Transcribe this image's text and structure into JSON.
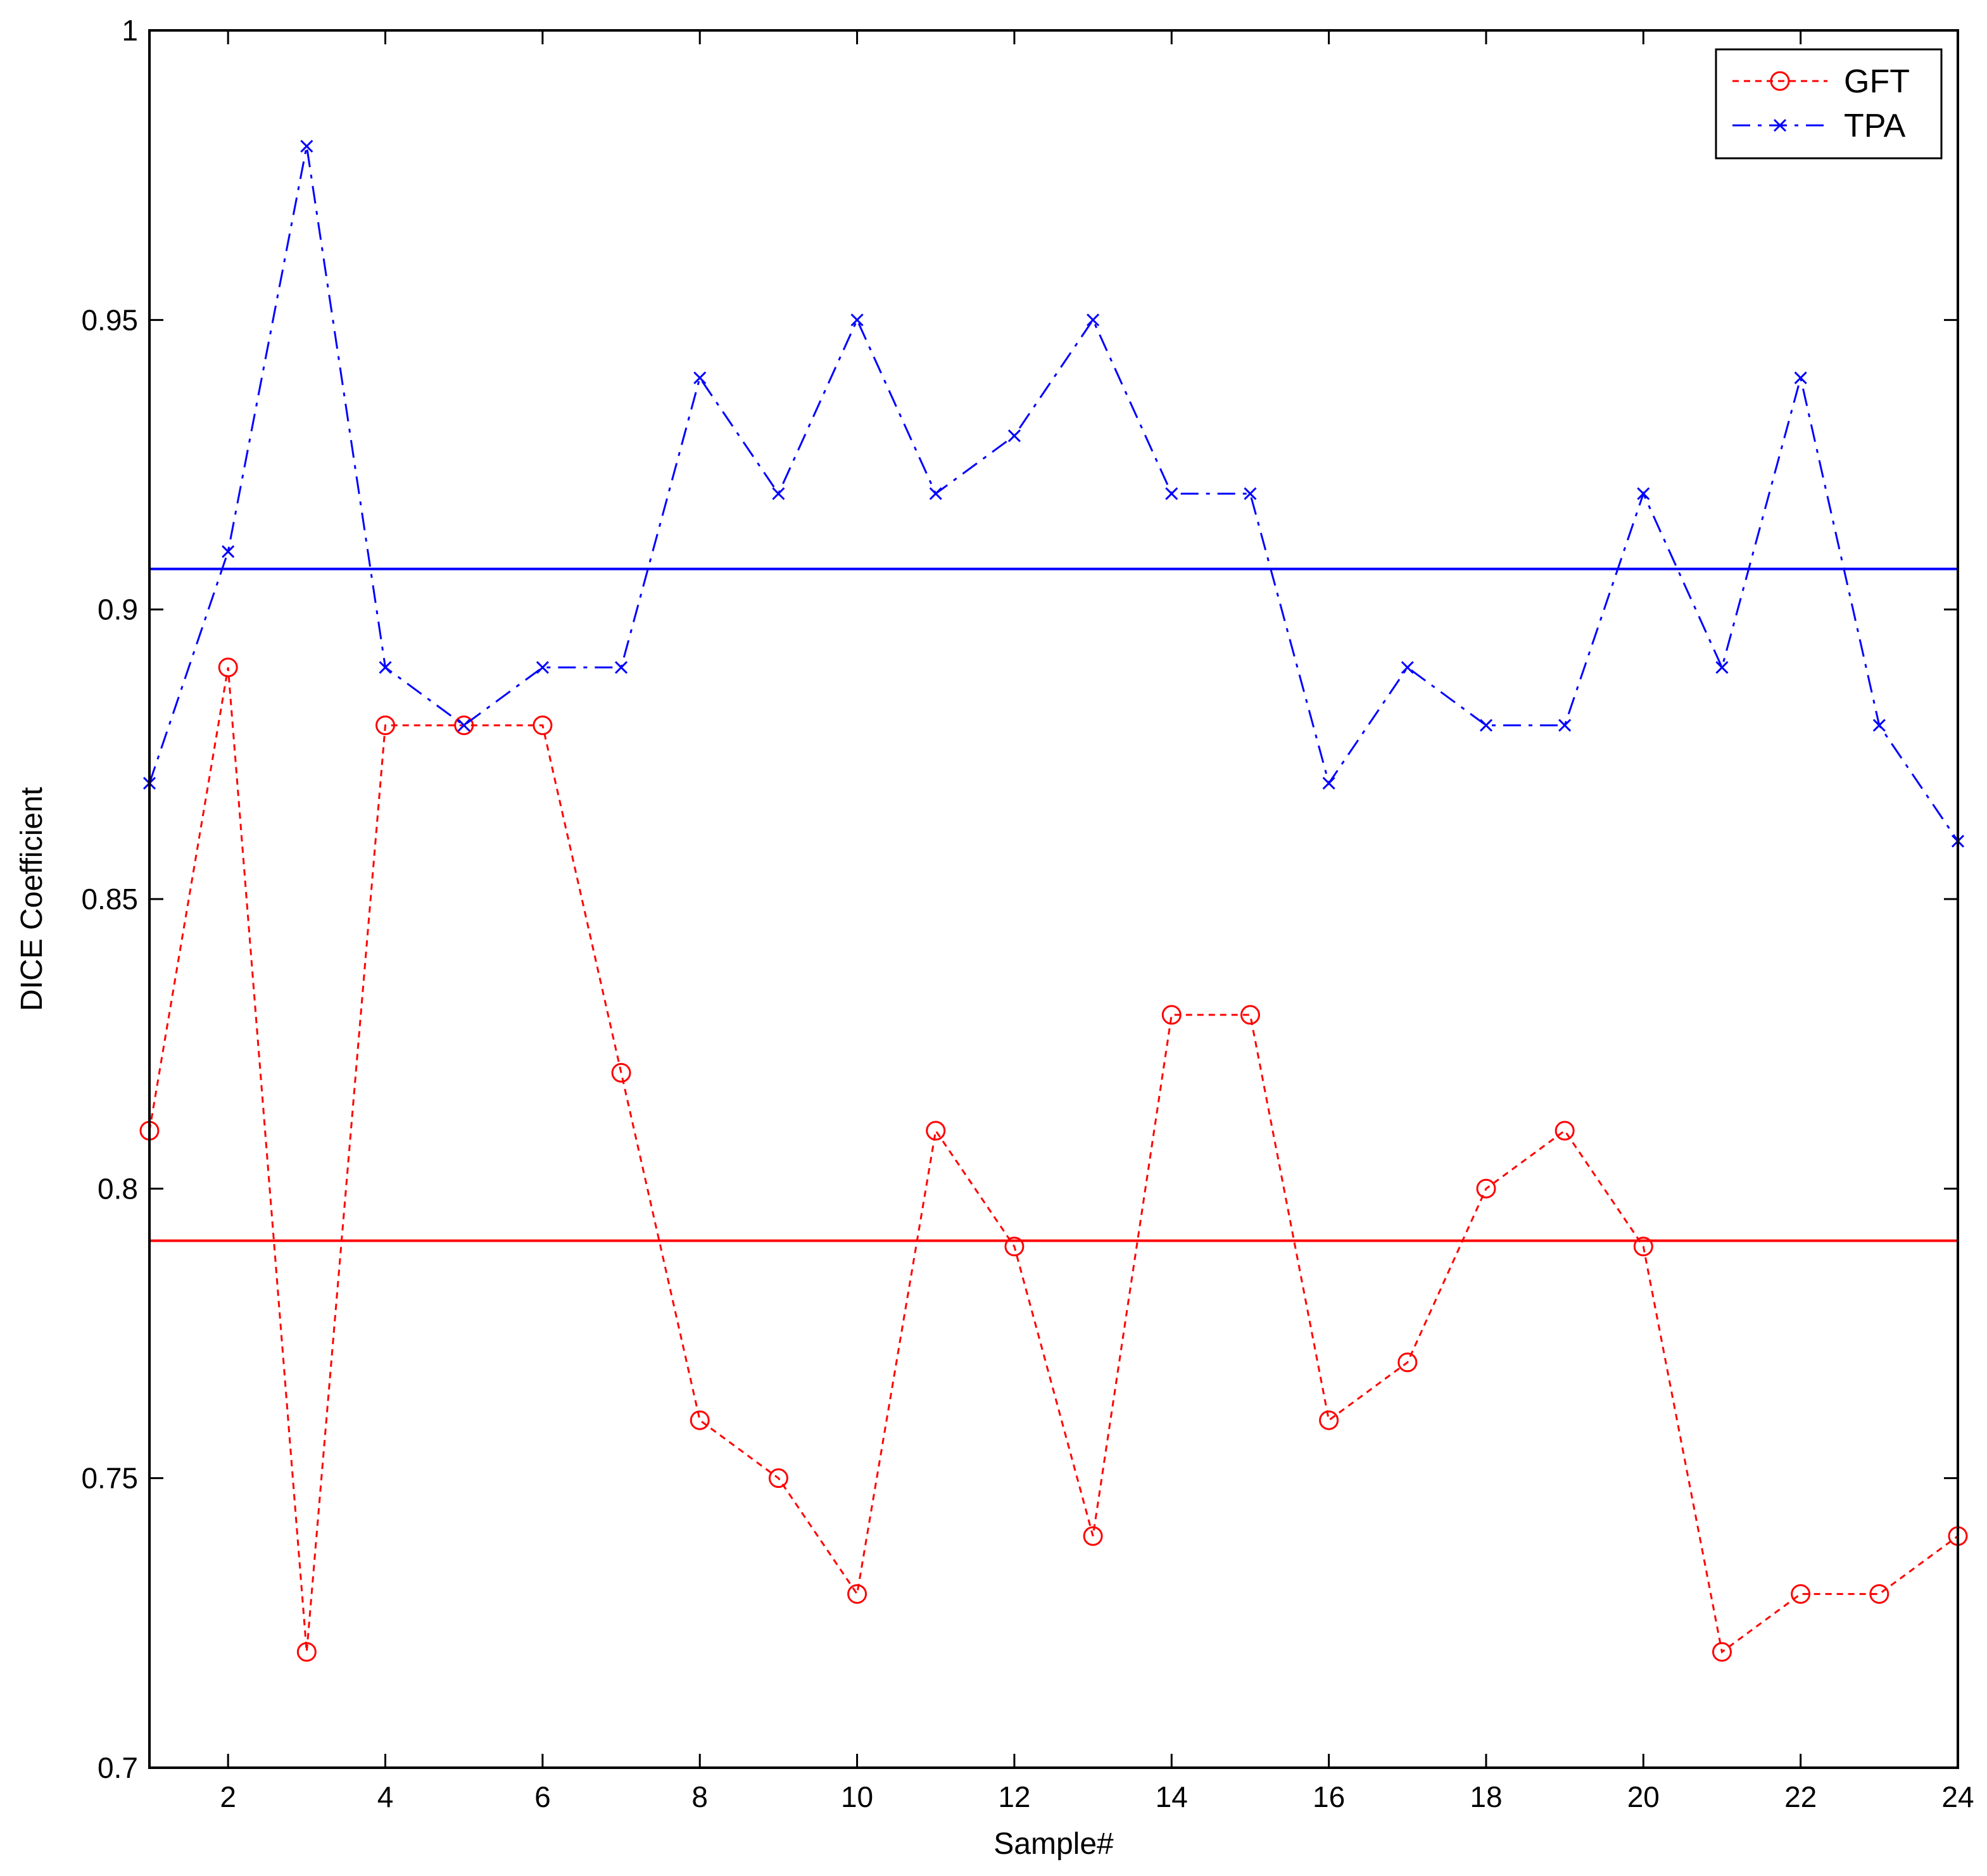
{
  "chart_data": {
    "type": "line",
    "title": "",
    "xlabel": "Sample#",
    "ylabel": "DICE Coefficient",
    "xlim": [
      1,
      24
    ],
    "ylim": [
      0.7,
      1
    ],
    "x_ticks": [
      2,
      4,
      6,
      8,
      10,
      12,
      14,
      16,
      18,
      20,
      22,
      24
    ],
    "y_ticks": [
      0.7,
      0.75,
      0.8,
      0.85,
      0.9,
      0.95,
      1
    ],
    "y_tick_labels": [
      "0.7",
      "0.75",
      "0.8",
      "0.85",
      "0.9",
      "0.95",
      "1"
    ],
    "grid": false,
    "legend_position": "top-right",
    "x": [
      1,
      2,
      3,
      4,
      5,
      6,
      7,
      8,
      9,
      10,
      11,
      12,
      13,
      14,
      15,
      16,
      17,
      18,
      19,
      20,
      21,
      22,
      23,
      24
    ],
    "series": [
      {
        "name": "GFT",
        "color": "#ff0000",
        "line_style": "dotted",
        "marker": "circle",
        "values": [
          0.81,
          0.89,
          0.72,
          0.88,
          0.88,
          0.88,
          0.82,
          0.76,
          0.75,
          0.73,
          0.81,
          0.79,
          0.74,
          0.83,
          0.83,
          0.76,
          0.77,
          0.8,
          0.81,
          0.79,
          0.72,
          0.73,
          0.73,
          0.74
        ]
      },
      {
        "name": "TPA",
        "color": "#0000ff",
        "line_style": "dash-dot",
        "marker": "x",
        "values": [
          0.87,
          0.91,
          0.98,
          0.89,
          0.88,
          0.89,
          0.89,
          0.94,
          0.92,
          0.95,
          0.92,
          0.93,
          0.95,
          0.92,
          0.92,
          0.87,
          0.89,
          0.88,
          0.88,
          0.92,
          0.89,
          0.94,
          0.88,
          0.86
        ]
      }
    ],
    "reference_lines": [
      {
        "color": "#0000ff",
        "y": 0.907
      },
      {
        "color": "#ff0000",
        "y": 0.791
      }
    ]
  }
}
